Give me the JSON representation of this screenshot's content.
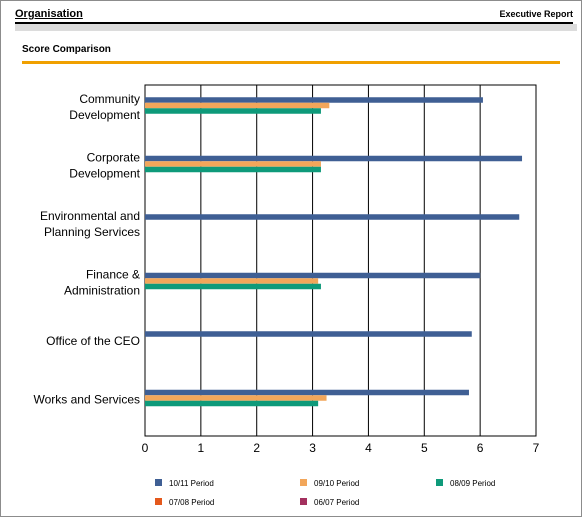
{
  "header": {
    "title": "Organisation",
    "report": "Executive Report"
  },
  "section": {
    "title": "Score Comparison"
  },
  "colors": {
    "accent_rule": "#f0a000"
  },
  "chart_data": {
    "type": "bar",
    "orientation": "horizontal",
    "categories": [
      [
        "Community",
        "Development"
      ],
      [
        "Corporate",
        "Development"
      ],
      [
        "Environmental and",
        "Planning Services"
      ],
      [
        "Finance &",
        "Administration"
      ],
      [
        "Office of the CEO"
      ],
      [
        "Works and Services"
      ]
    ],
    "series": [
      {
        "name": "10/11 Period",
        "color": "#3f5f94",
        "values": [
          6.05,
          6.75,
          6.7,
          6.0,
          5.85,
          5.8
        ]
      },
      {
        "name": "09/10 Period",
        "color": "#f2a65a",
        "values": [
          3.3,
          3.15,
          null,
          3.1,
          null,
          3.25
        ]
      },
      {
        "name": "08/09 Period",
        "color": "#0e9a7a",
        "values": [
          3.15,
          3.15,
          null,
          3.15,
          null,
          3.1
        ]
      },
      {
        "name": "07/08 Period",
        "color": "#e4581c",
        "values": [
          null,
          null,
          null,
          null,
          null,
          null
        ]
      },
      {
        "name": "06/07 Period",
        "color": "#a3305e",
        "values": [
          null,
          null,
          null,
          null,
          null,
          null
        ]
      }
    ],
    "xlim": [
      0,
      7
    ],
    "xticks": [
      0,
      1,
      2,
      3,
      4,
      5,
      6,
      7
    ],
    "grid": true,
    "legend_position": "bottom"
  }
}
